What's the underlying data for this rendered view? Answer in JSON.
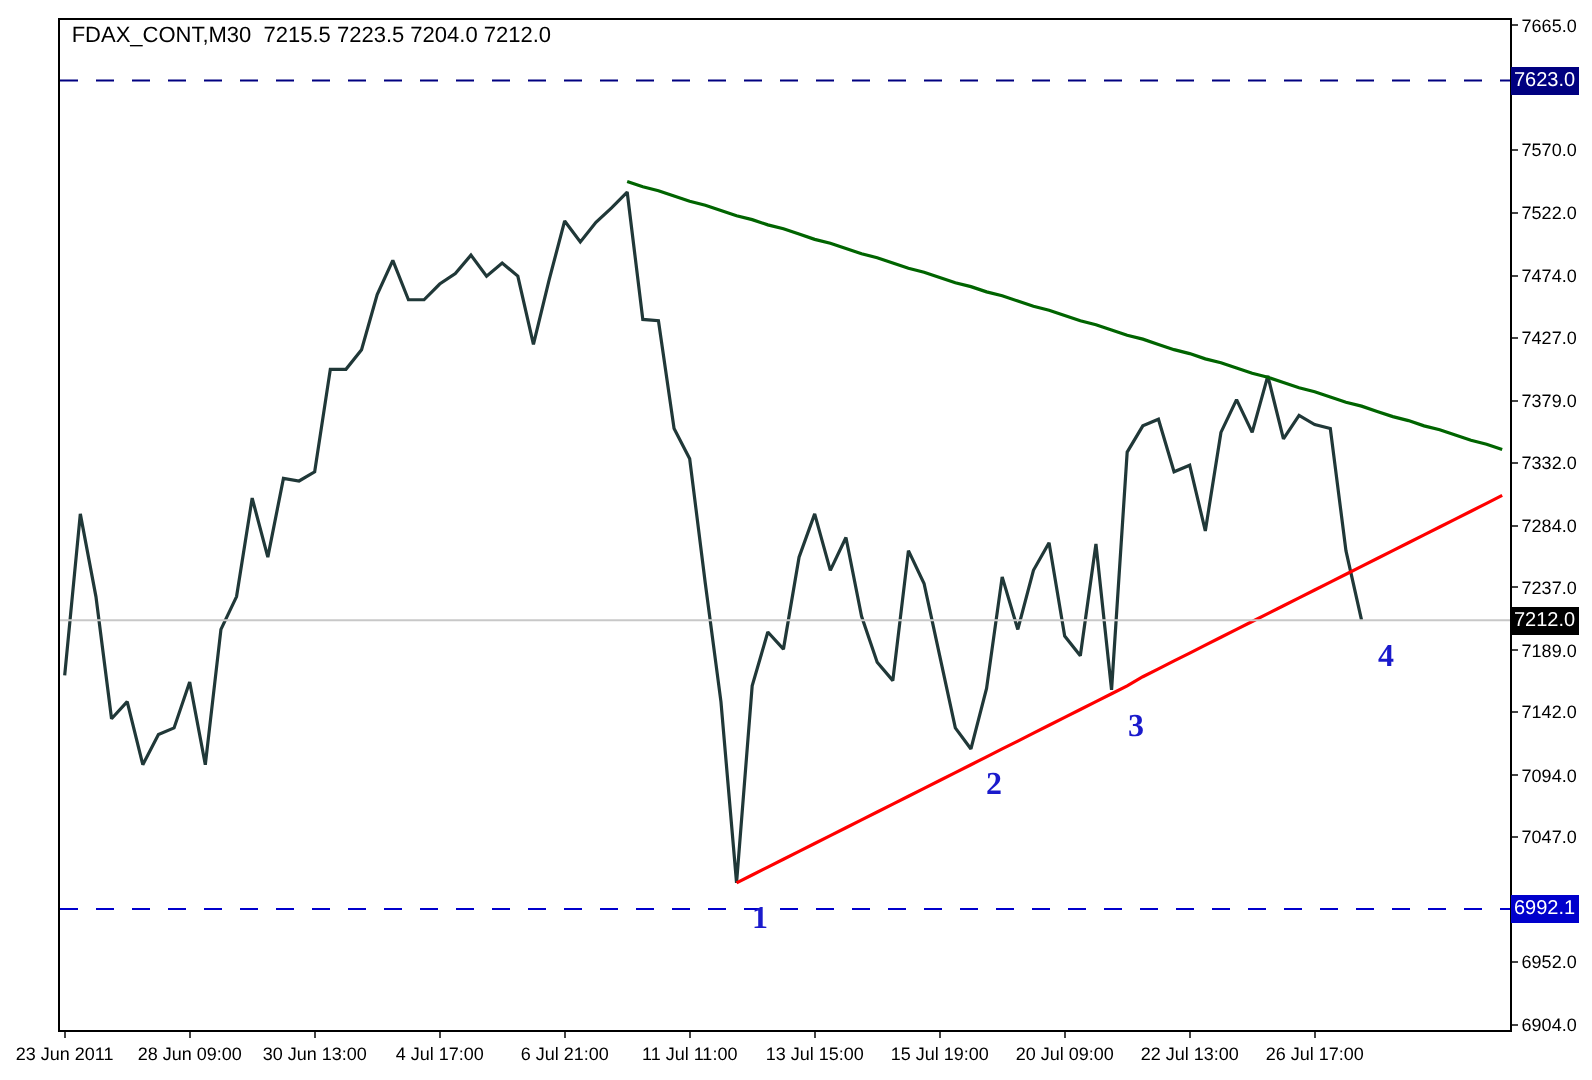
{
  "chart_data": {
    "type": "line",
    "title": "FDAX_CONT,M30  7215.5 7223.5 7204.0 7212.0",
    "categories": [
      "23 Jun 2011",
      null,
      null,
      null,
      null,
      null,
      null,
      null,
      "28 Jun 09:00",
      null,
      null,
      null,
      null,
      null,
      null,
      null,
      "30 Jun 13:00",
      null,
      null,
      null,
      null,
      null,
      null,
      null,
      "4 Jul 17:00",
      null,
      null,
      null,
      null,
      null,
      null,
      null,
      "6 Jul 21:00",
      null,
      null,
      null,
      null,
      null,
      null,
      null,
      "11 Jul 11:00",
      null,
      null,
      null,
      null,
      null,
      null,
      null,
      "13 Jul 15:00",
      null,
      null,
      null,
      null,
      null,
      null,
      null,
      "15 Jul 19:00",
      null,
      null,
      null,
      null,
      null,
      null,
      null,
      "20 Jul 09:00",
      null,
      null,
      null,
      null,
      null,
      null,
      null,
      "22 Jul 13:00",
      null,
      null,
      null,
      null,
      null,
      null,
      null,
      "26 Jul 17:00",
      null,
      null,
      null,
      null,
      null,
      null,
      null,
      null,
      null,
      null,
      null,
      null
    ],
    "series": [
      {
        "color": "#203838",
        "values": [
          7170,
          7293,
          7230,
          7137,
          7150,
          7102,
          7125,
          7130,
          7165,
          7102,
          7205,
          7230,
          7305,
          7260,
          7320,
          7318,
          7325,
          7403,
          7403,
          7418,
          7460,
          7486,
          7456,
          7456,
          7468,
          7476,
          7490,
          7474,
          7484,
          7474,
          7422,
          7471,
          7516,
          7500,
          7515,
          7526,
          7538,
          7441,
          7440,
          7358,
          7335,
          7240,
          7150,
          7012,
          7162,
          7203,
          7190,
          7260,
          7293,
          7250,
          7275,
          7215,
          7180,
          7166,
          7265,
          7240,
          7185,
          7130,
          7114,
          7160,
          7245,
          7205,
          7250,
          7271,
          7200,
          7185,
          7270,
          7159,
          7340,
          7360,
          7365,
          7325,
          7330,
          7280,
          7355,
          7380,
          7355,
          7398,
          7350,
          7368,
          7361,
          7358,
          7265,
          7212,
          null,
          null,
          null,
          null,
          null,
          null,
          null,
          null,
          null
        ]
      },
      {
        "color": "#006400",
        "values": [
          null,
          null,
          null,
          null,
          null,
          null,
          null,
          null,
          null,
          null,
          null,
          null,
          null,
          null,
          null,
          null,
          null,
          null,
          null,
          null,
          null,
          null,
          null,
          null,
          null,
          null,
          null,
          null,
          null,
          null,
          null,
          null,
          null,
          null,
          null,
          null,
          7546,
          7542,
          7539,
          7535,
          7531,
          7528,
          7524,
          7520,
          7517,
          7513,
          7510,
          7506,
          7502,
          7499,
          7495,
          7491,
          7488,
          7484,
          7480,
          7477,
          7473,
          7469,
          7466,
          7462,
          7459,
          7455,
          7451,
          7448,
          7444,
          7440,
          7437,
          7433,
          7429,
          7426,
          7422,
          7418,
          7415,
          7411,
          7408,
          7404,
          7400,
          7397,
          7393,
          7389,
          7386,
          7382,
          7378,
          7375,
          7371,
          7367,
          7364,
          7360,
          7357,
          7353,
          7349,
          7346,
          7342
        ]
      },
      {
        "color": "#ff0000",
        "values": [
          null,
          null,
          null,
          null,
          null,
          null,
          null,
          null,
          null,
          null,
          null,
          null,
          null,
          null,
          null,
          null,
          null,
          null,
          null,
          null,
          null,
          null,
          null,
          null,
          null,
          null,
          null,
          null,
          null,
          null,
          null,
          null,
          null,
          null,
          null,
          null,
          null,
          null,
          null,
          null,
          null,
          null,
          null,
          7012,
          7018,
          7024,
          7030,
          7036,
          7042,
          7048,
          7054,
          7060,
          7066,
          7072,
          7078,
          7084,
          7090,
          7096,
          7102,
          7108,
          7114,
          7120,
          7126,
          7132,
          7138,
          7144,
          7150,
          7156,
          7162,
          7169,
          7175,
          7181,
          7187,
          7193,
          7199,
          7205,
          7211,
          7217,
          7223,
          7229,
          7235,
          7241,
          7247,
          7253,
          7259,
          7265,
          7271,
          7277,
          7283,
          7289,
          7295,
          7301,
          7307
        ]
      }
    ],
    "ylim": [
      6900,
      7669
    ],
    "yticks": [
      {
        "value": 6904,
        "label": "6904.0"
      },
      {
        "value": 6952,
        "label": "6952.0"
      },
      {
        "value": 7047,
        "label": "7047.0"
      },
      {
        "value": 7094,
        "label": "7094.0"
      },
      {
        "value": 7142,
        "label": "7142.0"
      },
      {
        "value": 7189,
        "label": "7189.0"
      },
      {
        "value": 7237,
        "label": "7237.0"
      },
      {
        "value": 7284,
        "label": "7284.0"
      },
      {
        "value": 7332,
        "label": "7332.0"
      },
      {
        "value": 7379,
        "label": "7379.0"
      },
      {
        "value": 7427,
        "label": "7427.0"
      },
      {
        "value": 7474,
        "label": "7474.0"
      },
      {
        "value": 7522,
        "label": "7522.0"
      },
      {
        "value": 7570,
        "label": "7570.0"
      },
      {
        "value": 7665,
        "label": "7665.0"
      }
    ],
    "ref_lines": [
      {
        "axis": "y",
        "value": 7623.0,
        "label": "7623.0",
        "color": "#000080",
        "line_style": "dashed"
      },
      {
        "axis": "y",
        "value": 6992.1,
        "label": "6992.1",
        "color": "#0000cc",
        "line_style": "dashed"
      },
      {
        "axis": "y",
        "value": 7212.0,
        "label": "7212.0",
        "color": "#c8c8c8",
        "line_style": "solid"
      }
    ],
    "annotations": [
      {
        "text": "1",
        "y": 7012
      },
      {
        "text": "2",
        "y": 7114
      },
      {
        "text": "3",
        "y": 7159
      },
      {
        "text": "4",
        "y": 7212
      }
    ],
    "marker": "none",
    "line_style": "solid"
  }
}
